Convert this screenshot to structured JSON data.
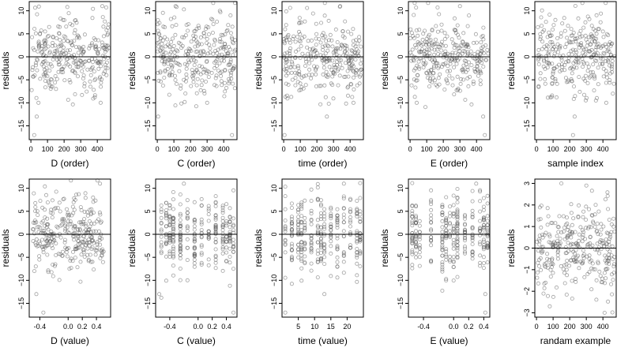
{
  "chart_data": [
    {
      "type": "scatter",
      "xlabel": "D (order)",
      "ylabel": "residuals",
      "xlim": [
        -10,
        480
      ],
      "ylim": [
        -18,
        12
      ],
      "xticks": [
        0,
        100,
        200,
        300,
        400
      ],
      "yticks": [
        -15,
        -10,
        -5,
        0,
        5,
        10
      ],
      "hline": 0,
      "x_kind": "index",
      "x_min": 1,
      "x_max": 470,
      "y_sd": 4.0,
      "n": 300,
      "highlight": [
        [
          20,
          -17
        ],
        [
          430,
          11
        ],
        [
          35,
          -13
        ],
        [
          420,
          -10
        ]
      ]
    },
    {
      "type": "scatter",
      "xlabel": "C (order)",
      "ylabel": "residuals",
      "xlim": [
        -10,
        480
      ],
      "ylim": [
        -18,
        12
      ],
      "xticks": [
        0,
        100,
        200,
        300,
        400
      ],
      "yticks": [
        -15,
        -10,
        -5,
        0,
        5,
        10
      ],
      "hline": 0,
      "x_kind": "index",
      "x_min": 1,
      "x_max": 470,
      "y_sd": 4.0,
      "n": 300,
      "highlight": [
        [
          450,
          -17
        ],
        [
          5,
          -13
        ],
        [
          110,
          11
        ],
        [
          300,
          -10
        ]
      ]
    },
    {
      "type": "scatter",
      "xlabel": "time (order)",
      "ylabel": "residuals",
      "xlim": [
        -10,
        480
      ],
      "ylim": [
        -18,
        12
      ],
      "xticks": [
        0,
        100,
        200,
        300,
        400
      ],
      "yticks": [
        -15,
        -10,
        -5,
        0,
        5,
        10
      ],
      "hline": 0,
      "x_kind": "index",
      "x_min": 1,
      "x_max": 470,
      "y_sd": 4.0,
      "n": 300,
      "highlight": [
        [
          5,
          -17
        ],
        [
          340,
          11
        ],
        [
          260,
          -13
        ],
        [
          420,
          -10
        ]
      ]
    },
    {
      "type": "scatter",
      "xlabel": "E (order)",
      "ylabel": "residuals",
      "xlim": [
        -10,
        480
      ],
      "ylim": [
        -18,
        12
      ],
      "xticks": [
        0,
        100,
        200,
        300,
        400
      ],
      "yticks": [
        -15,
        -10,
        -5,
        0,
        5,
        10
      ],
      "hline": 0,
      "x_kind": "index",
      "x_min": 1,
      "x_max": 470,
      "y_sd": 4.0,
      "n": 300,
      "highlight": [
        [
          450,
          -17
        ],
        [
          300,
          11
        ],
        [
          440,
          -13
        ],
        [
          40,
          -10
        ]
      ]
    },
    {
      "type": "scatter",
      "xlabel": "sample index",
      "ylabel": "residuals",
      "xlim": [
        -10,
        480
      ],
      "ylim": [
        -18,
        12
      ],
      "xticks": [
        0,
        100,
        200,
        300,
        400
      ],
      "yticks": [
        -15,
        -10,
        -5,
        0,
        5,
        10
      ],
      "hline": 0,
      "x_kind": "index",
      "x_min": 1,
      "x_max": 470,
      "y_sd": 4.0,
      "n": 300,
      "highlight": [
        [
          220,
          -17
        ],
        [
          230,
          -13
        ],
        [
          420,
          -10
        ],
        [
          460,
          -8
        ]
      ]
    },
    {
      "type": "scatter",
      "xlabel": "D (value)",
      "ylabel": "residuals",
      "xlim": [
        -0.55,
        0.6
      ],
      "ylim": [
        -18,
        12
      ],
      "xticks": [
        -0.4,
        0.0,
        0.2,
        0.4
      ],
      "xticklabels": [
        "-0.4",
        "0.0",
        "0.2",
        "0.4"
      ],
      "yticks": [
        -15,
        -10,
        -5,
        0,
        5,
        10
      ],
      "hline": 0,
      "x_kind": "continuous",
      "x_min": -0.5,
      "x_max": 0.52,
      "y_sd": 4.0,
      "n": 300,
      "highlight": [
        [
          -0.35,
          -17
        ],
        [
          0.45,
          11
        ],
        [
          -0.45,
          -13
        ]
      ]
    },
    {
      "type": "scatter",
      "xlabel": "C (value)",
      "ylabel": "residuals",
      "xlim": [
        -0.6,
        0.55
      ],
      "ylim": [
        -18,
        12
      ],
      "xticks": [
        -0.4,
        0.0,
        0.2,
        0.4
      ],
      "xticklabels": [
        "-0.4",
        "0.0",
        "0.2",
        "0.4"
      ],
      "yticks": [
        -15,
        -10,
        -5,
        0,
        5,
        10
      ],
      "hline": 0,
      "x_kind": "levels",
      "levels": [
        -0.52,
        -0.45,
        -0.4,
        -0.35,
        -0.25,
        -0.15,
        -0.05,
        0.05,
        0.15,
        0.25,
        0.35,
        0.4,
        0.45,
        0.5
      ],
      "y_sd": 4.0,
      "n": 300,
      "highlight": [
        [
          0.5,
          -17
        ],
        [
          -0.55,
          -13
        ],
        [
          -0.2,
          11
        ]
      ]
    },
    {
      "type": "scatter",
      "xlabel": "time (value)",
      "ylabel": "residuals",
      "xlim": [
        0,
        25
      ],
      "ylim": [
        -18,
        12
      ],
      "xticks": [
        5,
        10,
        15,
        20
      ],
      "yticks": [
        -15,
        -10,
        -5,
        0,
        5,
        10
      ],
      "hline": 0,
      "x_kind": "levels",
      "levels": [
        1,
        3,
        5,
        6,
        7,
        9,
        11,
        12,
        13,
        15,
        17,
        19,
        21,
        23,
        24
      ],
      "y_sd": 4.0,
      "n": 300,
      "highlight": [
        [
          1,
          -17
        ],
        [
          19,
          11
        ],
        [
          13,
          -13
        ]
      ]
    },
    {
      "type": "scatter",
      "xlabel": "E (value)",
      "ylabel": "residuals",
      "xlim": [
        -0.6,
        0.48
      ],
      "ylim": [
        -18,
        12
      ],
      "xticks": [
        -0.4,
        0.0,
        0.2,
        0.4
      ],
      "xticklabels": [
        "-0.4",
        "0.0",
        "0.2",
        "0.4"
      ],
      "yticks": [
        -15,
        -10,
        -5,
        0,
        5,
        10
      ],
      "hline": 0,
      "x_kind": "levels",
      "levels": [
        -0.55,
        -0.5,
        -0.45,
        -0.3,
        -0.15,
        -0.1,
        -0.05,
        0.0,
        0.05,
        0.15,
        0.25,
        0.35,
        0.4,
        0.45
      ],
      "y_sd": 4.0,
      "n": 300,
      "highlight": [
        [
          0.42,
          -17
        ],
        [
          0.3,
          11
        ],
        [
          0.42,
          -13
        ]
      ]
    },
    {
      "type": "scatter",
      "xlabel": "randam example",
      "ylabel": "residuals",
      "xlim": [
        -10,
        480
      ],
      "ylim": [
        -3.2,
        3.2
      ],
      "xticks": [
        0,
        100,
        200,
        300,
        400
      ],
      "yticks": [
        -3,
        -2,
        -1,
        0,
        1,
        2,
        3
      ],
      "hline": 0,
      "x_kind": "index",
      "x_min": 1,
      "x_max": 470,
      "y_sd": 1.0,
      "n": 300,
      "highlight": [
        [
          150,
          3.0
        ],
        [
          410,
          -3.0
        ],
        [
          300,
          2.9
        ],
        [
          80,
          -2.7
        ]
      ]
    }
  ]
}
